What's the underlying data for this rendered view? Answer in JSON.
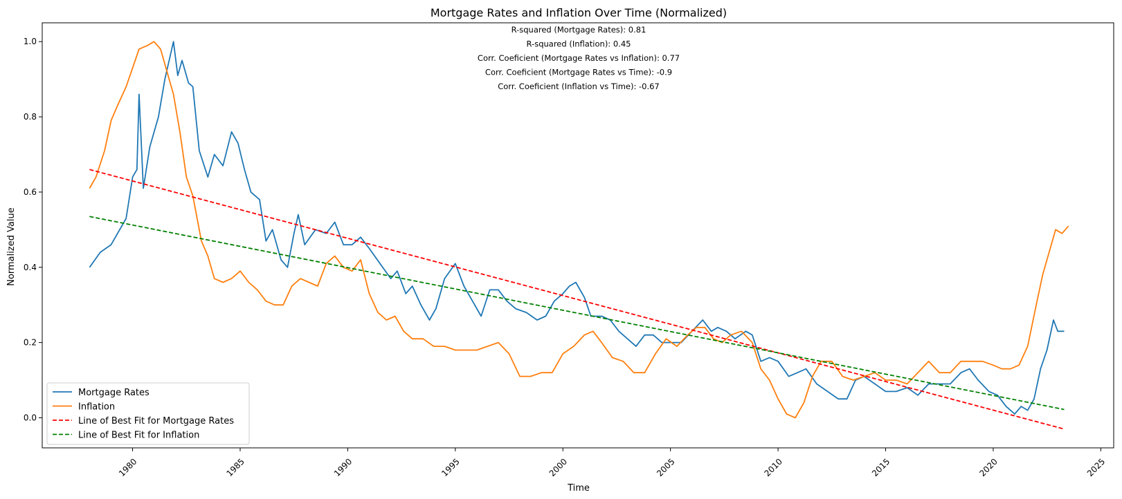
{
  "chart_data": {
    "type": "line",
    "title": "Mortgage Rates and Inflation Over Time (Normalized)",
    "xlabel": "Time",
    "ylabel": "Normalized Value",
    "xlim": [
      1975.8,
      2025.6
    ],
    "ylim": [
      -0.08,
      1.05
    ],
    "x_ticks": [
      1980,
      1985,
      1990,
      1995,
      2000,
      2005,
      2010,
      2015,
      2020,
      2025
    ],
    "y_ticks": [
      0.0,
      0.2,
      0.4,
      0.6,
      0.8,
      1.0
    ],
    "x_tick_labels": [
      "1980",
      "1985",
      "1990",
      "1995",
      "2000",
      "2005",
      "2010",
      "2015",
      "2020",
      "2025"
    ],
    "y_tick_labels": [
      "0.0",
      "0.2",
      "0.4",
      "0.6",
      "0.8",
      "1.0"
    ],
    "grid": false,
    "legend_position": "lower-left",
    "annotations": [
      "R-squared (Mortgage Rates): 0.81",
      "R-squared (Inflation): 0.45",
      "Corr. Coeficient (Mortgage Rates vs Inflation): 0.77",
      "Corr. Coeficient (Mortgage Rates vs Time): -0.9",
      "Corr. Coeficient (Inflation vs Time): -0.67"
    ],
    "series": [
      {
        "name": "Mortgage Rates",
        "color": "#1f77b4",
        "style": "solid",
        "points": [
          [
            1978.0,
            0.4
          ],
          [
            1978.5,
            0.44
          ],
          [
            1979.0,
            0.46
          ],
          [
            1979.3,
            0.49
          ],
          [
            1979.7,
            0.53
          ],
          [
            1980.0,
            0.64
          ],
          [
            1980.2,
            0.66
          ],
          [
            1980.3,
            0.86
          ],
          [
            1980.5,
            0.61
          ],
          [
            1980.8,
            0.72
          ],
          [
            1981.2,
            0.8
          ],
          [
            1981.5,
            0.9
          ],
          [
            1981.7,
            0.95
          ],
          [
            1981.9,
            1.0
          ],
          [
            1982.1,
            0.91
          ],
          [
            1982.3,
            0.95
          ],
          [
            1982.6,
            0.89
          ],
          [
            1982.8,
            0.88
          ],
          [
            1983.1,
            0.71
          ],
          [
            1983.5,
            0.64
          ],
          [
            1983.8,
            0.7
          ],
          [
            1984.2,
            0.67
          ],
          [
            1984.6,
            0.76
          ],
          [
            1984.9,
            0.73
          ],
          [
            1985.2,
            0.66
          ],
          [
            1985.5,
            0.6
          ],
          [
            1985.9,
            0.58
          ],
          [
            1986.2,
            0.47
          ],
          [
            1986.5,
            0.5
          ],
          [
            1986.9,
            0.42
          ],
          [
            1987.2,
            0.4
          ],
          [
            1987.5,
            0.49
          ],
          [
            1987.7,
            0.54
          ],
          [
            1988.0,
            0.46
          ],
          [
            1988.5,
            0.5
          ],
          [
            1989.0,
            0.49
          ],
          [
            1989.4,
            0.52
          ],
          [
            1989.8,
            0.46
          ],
          [
            1990.2,
            0.46
          ],
          [
            1990.6,
            0.48
          ],
          [
            1991.0,
            0.45
          ],
          [
            1991.5,
            0.41
          ],
          [
            1992.0,
            0.37
          ],
          [
            1992.3,
            0.39
          ],
          [
            1992.7,
            0.33
          ],
          [
            1993.0,
            0.35
          ],
          [
            1993.4,
            0.3
          ],
          [
            1993.8,
            0.26
          ],
          [
            1994.1,
            0.29
          ],
          [
            1994.5,
            0.37
          ],
          [
            1995.0,
            0.41
          ],
          [
            1995.4,
            0.35
          ],
          [
            1995.8,
            0.31
          ],
          [
            1996.2,
            0.27
          ],
          [
            1996.6,
            0.34
          ],
          [
            1997.0,
            0.34
          ],
          [
            1997.4,
            0.31
          ],
          [
            1997.8,
            0.29
          ],
          [
            1998.3,
            0.28
          ],
          [
            1998.8,
            0.26
          ],
          [
            1999.2,
            0.27
          ],
          [
            1999.6,
            0.31
          ],
          [
            2000.0,
            0.33
          ],
          [
            2000.3,
            0.35
          ],
          [
            2000.6,
            0.36
          ],
          [
            2001.0,
            0.32
          ],
          [
            2001.3,
            0.27
          ],
          [
            2001.8,
            0.27
          ],
          [
            2002.2,
            0.26
          ],
          [
            2002.6,
            0.23
          ],
          [
            2003.0,
            0.21
          ],
          [
            2003.4,
            0.19
          ],
          [
            2003.8,
            0.22
          ],
          [
            2004.2,
            0.22
          ],
          [
            2004.6,
            0.2
          ],
          [
            2005.0,
            0.2
          ],
          [
            2005.5,
            0.2
          ],
          [
            2006.0,
            0.23
          ],
          [
            2006.5,
            0.26
          ],
          [
            2006.9,
            0.23
          ],
          [
            2007.2,
            0.24
          ],
          [
            2007.6,
            0.23
          ],
          [
            2008.0,
            0.21
          ],
          [
            2008.5,
            0.23
          ],
          [
            2008.8,
            0.22
          ],
          [
            2009.2,
            0.15
          ],
          [
            2009.6,
            0.16
          ],
          [
            2010.0,
            0.15
          ],
          [
            2010.5,
            0.11
          ],
          [
            2010.9,
            0.12
          ],
          [
            2011.3,
            0.13
          ],
          [
            2011.8,
            0.09
          ],
          [
            2012.3,
            0.07
          ],
          [
            2012.8,
            0.05
          ],
          [
            2013.2,
            0.05
          ],
          [
            2013.6,
            0.1
          ],
          [
            2014.0,
            0.11
          ],
          [
            2014.5,
            0.09
          ],
          [
            2015.0,
            0.07
          ],
          [
            2015.5,
            0.07
          ],
          [
            2016.0,
            0.08
          ],
          [
            2016.5,
            0.06
          ],
          [
            2017.0,
            0.09
          ],
          [
            2017.5,
            0.09
          ],
          [
            2018.0,
            0.09
          ],
          [
            2018.5,
            0.12
          ],
          [
            2018.9,
            0.13
          ],
          [
            2019.3,
            0.1
          ],
          [
            2019.8,
            0.07
          ],
          [
            2020.2,
            0.06
          ],
          [
            2020.6,
            0.03
          ],
          [
            2021.0,
            0.01
          ],
          [
            2021.3,
            0.03
          ],
          [
            2021.6,
            0.02
          ],
          [
            2021.9,
            0.05
          ],
          [
            2022.2,
            0.13
          ],
          [
            2022.5,
            0.18
          ],
          [
            2022.8,
            0.26
          ],
          [
            2023.0,
            0.23
          ],
          [
            2023.3,
            0.23
          ]
        ]
      },
      {
        "name": "Inflation",
        "color": "#ff7f0e",
        "style": "solid",
        "points": [
          [
            1978.0,
            0.61
          ],
          [
            1978.3,
            0.64
          ],
          [
            1978.7,
            0.71
          ],
          [
            1979.0,
            0.79
          ],
          [
            1979.3,
            0.83
          ],
          [
            1979.7,
            0.88
          ],
          [
            1980.0,
            0.93
          ],
          [
            1980.3,
            0.98
          ],
          [
            1980.7,
            0.99
          ],
          [
            1981.0,
            1.0
          ],
          [
            1981.3,
            0.98
          ],
          [
            1981.6,
            0.92
          ],
          [
            1981.9,
            0.86
          ],
          [
            1982.2,
            0.76
          ],
          [
            1982.5,
            0.64
          ],
          [
            1982.8,
            0.59
          ],
          [
            1983.2,
            0.47
          ],
          [
            1983.5,
            0.43
          ],
          [
            1983.8,
            0.37
          ],
          [
            1984.2,
            0.36
          ],
          [
            1984.6,
            0.37
          ],
          [
            1985.0,
            0.39
          ],
          [
            1985.4,
            0.36
          ],
          [
            1985.8,
            0.34
          ],
          [
            1986.2,
            0.31
          ],
          [
            1986.6,
            0.3
          ],
          [
            1987.0,
            0.3
          ],
          [
            1987.4,
            0.35
          ],
          [
            1987.8,
            0.37
          ],
          [
            1988.2,
            0.36
          ],
          [
            1988.6,
            0.35
          ],
          [
            1989.0,
            0.41
          ],
          [
            1989.4,
            0.43
          ],
          [
            1989.8,
            0.4
          ],
          [
            1990.2,
            0.39
          ],
          [
            1990.6,
            0.42
          ],
          [
            1991.0,
            0.33
          ],
          [
            1991.4,
            0.28
          ],
          [
            1991.8,
            0.26
          ],
          [
            1992.2,
            0.27
          ],
          [
            1992.6,
            0.23
          ],
          [
            1993.0,
            0.21
          ],
          [
            1993.5,
            0.21
          ],
          [
            1994.0,
            0.19
          ],
          [
            1994.5,
            0.19
          ],
          [
            1995.0,
            0.18
          ],
          [
            1995.5,
            0.18
          ],
          [
            1996.0,
            0.18
          ],
          [
            1996.5,
            0.19
          ],
          [
            1997.0,
            0.2
          ],
          [
            1997.5,
            0.17
          ],
          [
            1998.0,
            0.11
          ],
          [
            1998.5,
            0.11
          ],
          [
            1999.0,
            0.12
          ],
          [
            1999.5,
            0.12
          ],
          [
            2000.0,
            0.17
          ],
          [
            2000.5,
            0.19
          ],
          [
            2001.0,
            0.22
          ],
          [
            2001.4,
            0.23
          ],
          [
            2001.8,
            0.2
          ],
          [
            2002.3,
            0.16
          ],
          [
            2002.8,
            0.15
          ],
          [
            2003.3,
            0.12
          ],
          [
            2003.8,
            0.12
          ],
          [
            2004.3,
            0.17
          ],
          [
            2004.8,
            0.21
          ],
          [
            2005.3,
            0.19
          ],
          [
            2005.8,
            0.22
          ],
          [
            2006.2,
            0.24
          ],
          [
            2006.6,
            0.24
          ],
          [
            2007.0,
            0.21
          ],
          [
            2007.4,
            0.2
          ],
          [
            2007.8,
            0.22
          ],
          [
            2008.3,
            0.23
          ],
          [
            2008.8,
            0.2
          ],
          [
            2009.2,
            0.13
          ],
          [
            2009.6,
            0.1
          ],
          [
            2010.0,
            0.05
          ],
          [
            2010.4,
            0.01
          ],
          [
            2010.8,
            0.0
          ],
          [
            2011.2,
            0.04
          ],
          [
            2011.6,
            0.11
          ],
          [
            2012.0,
            0.15
          ],
          [
            2012.5,
            0.15
          ],
          [
            2013.0,
            0.11
          ],
          [
            2013.5,
            0.1
          ],
          [
            2014.0,
            0.11
          ],
          [
            2014.5,
            0.12
          ],
          [
            2015.0,
            0.1
          ],
          [
            2015.5,
            0.1
          ],
          [
            2016.0,
            0.09
          ],
          [
            2016.5,
            0.12
          ],
          [
            2017.0,
            0.15
          ],
          [
            2017.5,
            0.12
          ],
          [
            2018.0,
            0.12
          ],
          [
            2018.5,
            0.15
          ],
          [
            2019.0,
            0.15
          ],
          [
            2019.5,
            0.15
          ],
          [
            2020.0,
            0.14
          ],
          [
            2020.4,
            0.13
          ],
          [
            2020.8,
            0.13
          ],
          [
            2021.2,
            0.14
          ],
          [
            2021.6,
            0.19
          ],
          [
            2022.0,
            0.3
          ],
          [
            2022.3,
            0.38
          ],
          [
            2022.6,
            0.44
          ],
          [
            2022.9,
            0.5
          ],
          [
            2023.2,
            0.49
          ],
          [
            2023.5,
            0.51
          ]
        ]
      },
      {
        "name": "Line of Best Fit for Mortgage Rates",
        "color": "#ff0000",
        "style": "dashed",
        "points": [
          [
            1978.0,
            0.66
          ],
          [
            2023.3,
            -0.03
          ]
        ]
      },
      {
        "name": "Line of Best Fit for Inflation",
        "color": "#008000",
        "style": "dashed",
        "points": [
          [
            1978.0,
            0.535
          ],
          [
            2023.3,
            0.022
          ]
        ]
      }
    ]
  }
}
